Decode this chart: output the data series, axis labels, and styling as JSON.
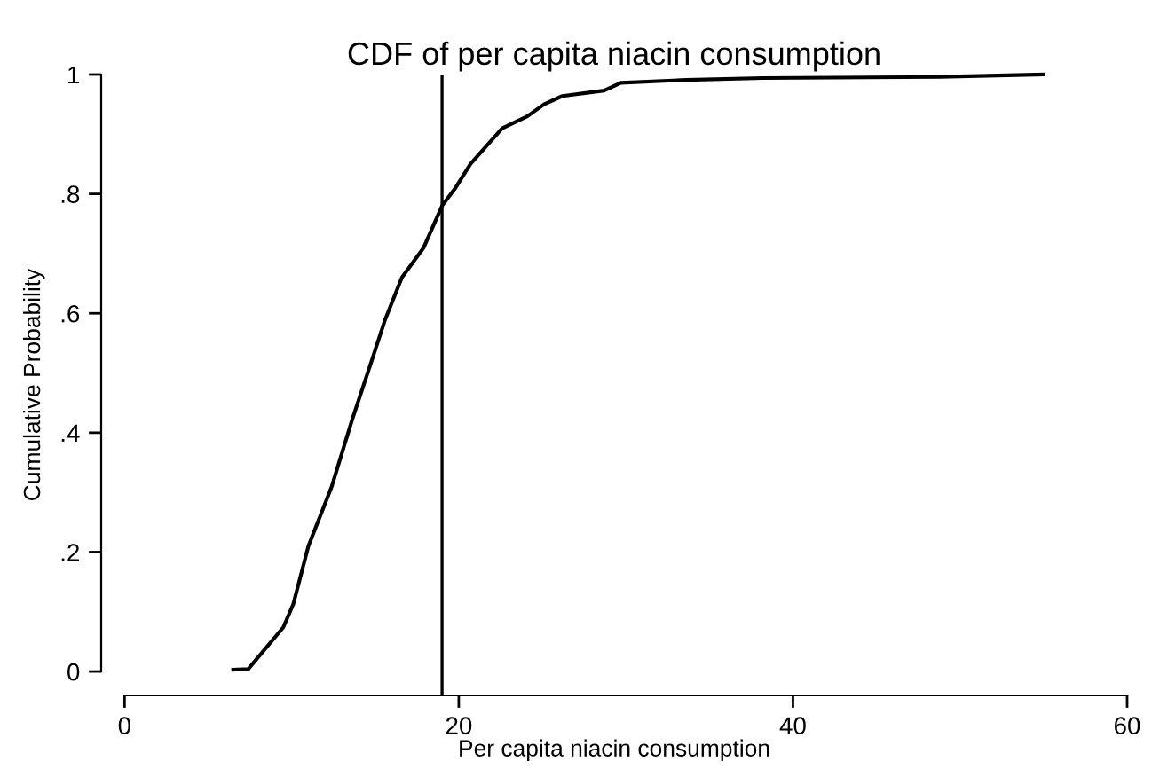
{
  "chart_data": {
    "type": "line",
    "title": "CDF of per capita niacin consumption",
    "xlabel": "Per capita niacin consumption",
    "ylabel": "Cumulative Probability",
    "series": [
      {
        "color": "#000000",
        "x": [
          6.5,
          7.4,
          8.0,
          9.5,
          10.1,
          11.0,
          12.4,
          13.6,
          14.9,
          15.6,
          16.6,
          17.9,
          19.0,
          19.8,
          20.7,
          22.6,
          24.1,
          25.1,
          26.2,
          28.7,
          29.7,
          33.6,
          38.2,
          48.8,
          55.0
        ],
        "values": [
          0.003,
          0.004,
          0.024,
          0.074,
          0.113,
          0.21,
          0.31,
          0.42,
          0.53,
          0.59,
          0.66,
          0.71,
          0.78,
          0.81,
          0.85,
          0.91,
          0.93,
          0.95,
          0.964,
          0.973,
          0.986,
          0.991,
          0.994,
          0.996,
          1.0
        ]
      }
    ],
    "ref_lines": [
      {
        "axis": "x",
        "value": 19,
        "color": "#000000"
      }
    ],
    "xlim": [
      -1.4,
      60
    ],
    "ylim": [
      -0.04,
      1.0
    ],
    "xticks": [
      0,
      20,
      40,
      60
    ],
    "yticks": [
      0,
      {
        "value": 0.2,
        "label": ".2"
      },
      {
        "value": 0.4,
        "label": ".4"
      },
      {
        "value": 0.6,
        "label": ".6"
      },
      {
        "value": 0.8,
        "label": ".8"
      },
      1
    ],
    "grid": false,
    "legend": false
  }
}
